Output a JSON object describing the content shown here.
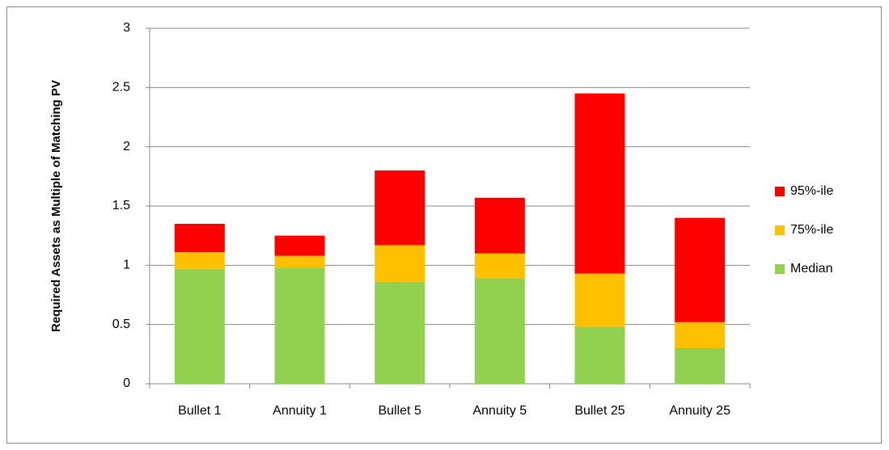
{
  "chart_data": {
    "type": "stacked_bar",
    "ylabel": "Required Assets as Multiple of Matching PV",
    "categories": [
      "Bullet 1",
      "Annuity 1",
      "Bullet 5",
      "Annuity 5",
      "Bullet 25",
      "Annuity 25"
    ],
    "series": [
      {
        "name": "Median",
        "color": "#92d050",
        "values": [
          0.97,
          0.98,
          0.86,
          0.89,
          0.48,
          0.3
        ]
      },
      {
        "name": "75%-ile",
        "color": "#ffc000",
        "values": [
          0.14,
          0.1,
          0.31,
          0.21,
          0.45,
          0.22
        ]
      },
      {
        "name": "95%-ile",
        "color": "#ff0000",
        "values": [
          0.24,
          0.17,
          0.63,
          0.47,
          1.52,
          0.88
        ]
      }
    ],
    "ylim": [
      0,
      3
    ],
    "yticks": [
      0,
      0.5,
      1,
      1.5,
      2,
      2.5,
      3
    ],
    "grid": true,
    "legend": "right"
  }
}
